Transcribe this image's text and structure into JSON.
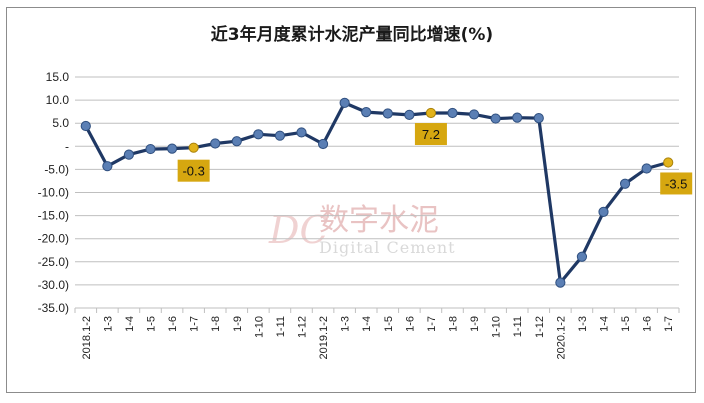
{
  "chart_data": {
    "type": "line",
    "title": "近3年月度累计水泥产量同比增速(%)",
    "categories": [
      "2018.1-2",
      "1-3",
      "1-4",
      "1-5",
      "1-6",
      "1-7",
      "1-8",
      "1-9",
      "1-10",
      "1-11",
      "1-12",
      "2019.1-2",
      "1-3",
      "1-4",
      "1-5",
      "1-6",
      "1-7",
      "1-8",
      "1-9",
      "1-10",
      "1-11",
      "1-12",
      "2020.1-2",
      "1-3",
      "1-4",
      "1-5",
      "1-6",
      "1-7"
    ],
    "series": [
      {
        "values": [
          4.4,
          -4.3,
          -1.8,
          -0.6,
          -0.5,
          -0.3,
          0.6,
          1.1,
          2.6,
          2.3,
          3.0,
          0.5,
          9.4,
          7.4,
          7.1,
          6.8,
          7.2,
          7.2,
          6.9,
          6.0,
          6.2,
          6.1,
          -29.5,
          -23.9,
          -14.2,
          -8.1,
          -4.8,
          -3.5
        ]
      }
    ],
    "ylim": [
      -35,
      15
    ],
    "yticks": [
      "15.0",
      "10.0",
      "5.0",
      "-",
      "-5.0)",
      "-10.0)",
      "-15.0)",
      "-20.0)",
      "-25.0)",
      "-30.0)",
      "-35.0)"
    ],
    "ytick_values": [
      15,
      10,
      5,
      0,
      -5,
      -10,
      -15,
      -20,
      -25,
      -30,
      -35
    ],
    "grid": true,
    "highlighted_labels": [
      {
        "index": 5,
        "text": "-0.3"
      },
      {
        "index": 16,
        "text": "7.2"
      },
      {
        "index": 27,
        "text": "-3.5"
      }
    ],
    "colors": {
      "line": "#1f3864",
      "marker": "#5b7fb4",
      "highlight_marker": "#e2b31a",
      "label_box": "#d6a710",
      "grid": "#bfbfbf"
    }
  },
  "watermark": {
    "logo": "DC",
    "chinese": "数字水泥",
    "english": "Digital Cement"
  }
}
